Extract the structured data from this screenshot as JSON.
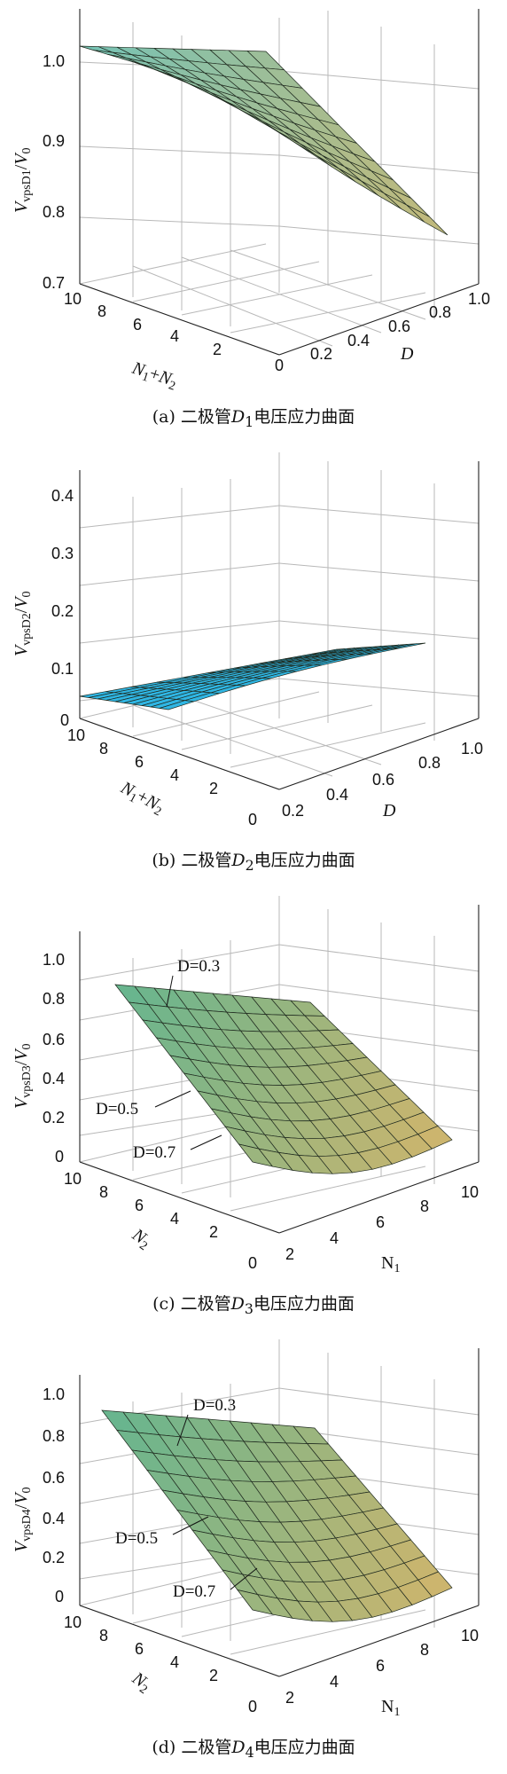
{
  "chart_data": [
    {
      "type": "surface3d",
      "caption": "(a) 二极管D1电压应力曲面",
      "caption_parts": {
        "prefix": "(a) 二极管",
        "var": "D",
        "sub": "1",
        "suffix": "电压应力曲面"
      },
      "zlabel": "V_vpsD1/V_0",
      "xlabel": "N1+N2",
      "ylabel": "D",
      "x_ticks": [
        "10",
        "8",
        "6",
        "4",
        "2",
        "0"
      ],
      "y_ticks": [
        "0.2",
        "0.4",
        "0.6",
        "0.8",
        "1.0"
      ],
      "z_ticks": [
        "1.0",
        "0.9",
        "0.8",
        "0.7"
      ],
      "zlim": [
        0.7,
        1.0
      ],
      "surface_color": [
        "#78c3b4",
        "#c7b877"
      ],
      "annotations": []
    },
    {
      "type": "surface3d",
      "caption": "(b) 二极管D2电压应力曲面",
      "caption_parts": {
        "prefix": "(b) 二极管",
        "var": "D",
        "sub": "2",
        "suffix": "电压应力曲面"
      },
      "zlabel": "V_vpsD2/V_0",
      "xlabel": "N1+N2",
      "ylabel": "D",
      "x_ticks": [
        "10",
        "8",
        "6",
        "4",
        "2",
        "0"
      ],
      "y_ticks": [
        "0.2",
        "0.4",
        "0.6",
        "0.8",
        "1.0"
      ],
      "z_ticks": [
        "0.4",
        "0.3",
        "0.2",
        "0.1",
        "0"
      ],
      "zlim": [
        0,
        0.4
      ],
      "surface_color": [
        "#2fb6e4",
        "#2fb6e4"
      ],
      "annotations": []
    },
    {
      "type": "surface3d",
      "caption": "(c) 二极管D3电压应力曲面",
      "caption_parts": {
        "prefix": "(c) 二极管",
        "var": "D",
        "sub": "3",
        "suffix": "电压应力曲面"
      },
      "zlabel": "V_vpsD3/V_0",
      "xlabel": "N2",
      "ylabel": "N1",
      "x_ticks": [
        "10",
        "8",
        "6",
        "4",
        "2",
        "0"
      ],
      "y_ticks": [
        "2",
        "4",
        "6",
        "8",
        "10"
      ],
      "z_ticks": [
        "1.0",
        "0.8",
        "0.6",
        "0.4",
        "0.2",
        "0"
      ],
      "zlim": [
        0,
        1.0
      ],
      "surface_color": [
        "#69b58e",
        "#d7b56a"
      ],
      "annotations": [
        "D=0.3",
        "D=0.5",
        "D=0.7"
      ]
    },
    {
      "type": "surface3d",
      "caption": "(d) 二极管D4电压应力曲面",
      "caption_parts": {
        "prefix": "(d) 二极管",
        "var": "D",
        "sub": "4",
        "suffix": "电压应力曲面"
      },
      "zlabel": "V_vpsD4/V_0",
      "xlabel": "N2",
      "ylabel": "N1",
      "x_ticks": [
        "10",
        "8",
        "6",
        "4",
        "2",
        "0"
      ],
      "y_ticks": [
        "2",
        "4",
        "6",
        "8",
        "10"
      ],
      "z_ticks": [
        "1.0",
        "0.8",
        "0.6",
        "0.4",
        "0.2",
        "0"
      ],
      "zlim": [
        0,
        1.0
      ],
      "surface_color": [
        "#69b58e",
        "#d7b56a"
      ],
      "annotations": [
        "D=0.3",
        "D=0.5",
        "D=0.7"
      ]
    }
  ]
}
